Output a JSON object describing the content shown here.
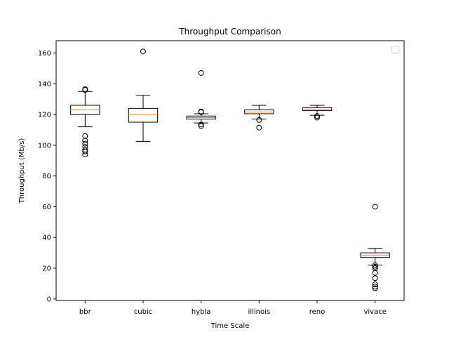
{
  "chart_data": {
    "type": "box",
    "title": "Throughput Comparison",
    "xlabel": "Time Scale",
    "ylabel": "Throughput (Mb/s)",
    "ylim": [
      -1,
      168
    ],
    "yticks": [
      0,
      20,
      40,
      60,
      80,
      100,
      120,
      140,
      160
    ],
    "categories": [
      "bbr",
      "cubic",
      "hybla",
      "illinois",
      "reno",
      "vivace"
    ],
    "boxes": [
      {
        "name": "bbr",
        "whisker_low": 112,
        "q1": 120,
        "median": 123,
        "q3": 126,
        "whisker_high": 135,
        "fliers": [
          94,
          96,
          97,
          99,
          101,
          103,
          106,
          136,
          136.5
        ]
      },
      {
        "name": "cubic",
        "whisker_low": 102.5,
        "q1": 115,
        "median": 120,
        "q3": 124,
        "whisker_high": 132.5,
        "fliers": [
          161
        ]
      },
      {
        "name": "hybla",
        "whisker_low": 114.5,
        "q1": 117,
        "median": 118,
        "q3": 119,
        "whisker_high": 120.5,
        "fliers": [
          112.5,
          113.5,
          121.5,
          122,
          147
        ]
      },
      {
        "name": "illinois",
        "whisker_low": 117,
        "q1": 120.5,
        "median": 121.5,
        "q3": 123,
        "whisker_high": 126,
        "fliers": [
          111.5,
          116.5
        ]
      },
      {
        "name": "reno",
        "whisker_low": 119.5,
        "q1": 122.5,
        "median": 123.5,
        "q3": 124.5,
        "whisker_high": 126,
        "fliers": [
          118,
          119
        ]
      },
      {
        "name": "vivace",
        "whisker_low": 22,
        "q1": 27,
        "median": 28.5,
        "q3": 30,
        "whisker_high": 33,
        "fliers": [
          7,
          8,
          9.5,
          13.5,
          17,
          20,
          21,
          22,
          60
        ]
      }
    ],
    "legend": {
      "placement": "upper right",
      "entries": []
    },
    "grid": false,
    "colors": {
      "box": "#000000",
      "median": "#ff7f0e",
      "flier": "#000000",
      "background": "#ffffff"
    }
  }
}
